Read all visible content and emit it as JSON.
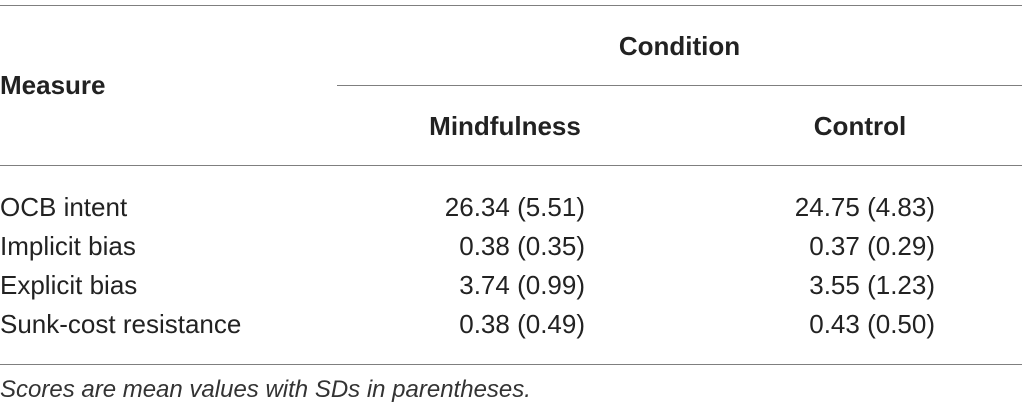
{
  "table": {
    "header": {
      "measure": "Measure",
      "group": "Condition",
      "columns": [
        "Mindfulness",
        "Control"
      ]
    },
    "rows": [
      {
        "label": "OCB intent",
        "values": [
          "26.34 (5.51)",
          "24.75 (4.83)"
        ]
      },
      {
        "label": "Implicit bias",
        "values": [
          "0.38 (0.35)",
          "0.37 (0.29)"
        ]
      },
      {
        "label": "Explicit bias",
        "values": [
          "3.74 (0.99)",
          "3.55 (1.23)"
        ]
      },
      {
        "label": "Sunk-cost resistance",
        "values": [
          "0.38 (0.49)",
          "0.43 (0.50)"
        ]
      }
    ],
    "footnote": "Scores are mean values with SDs in parentheses."
  }
}
